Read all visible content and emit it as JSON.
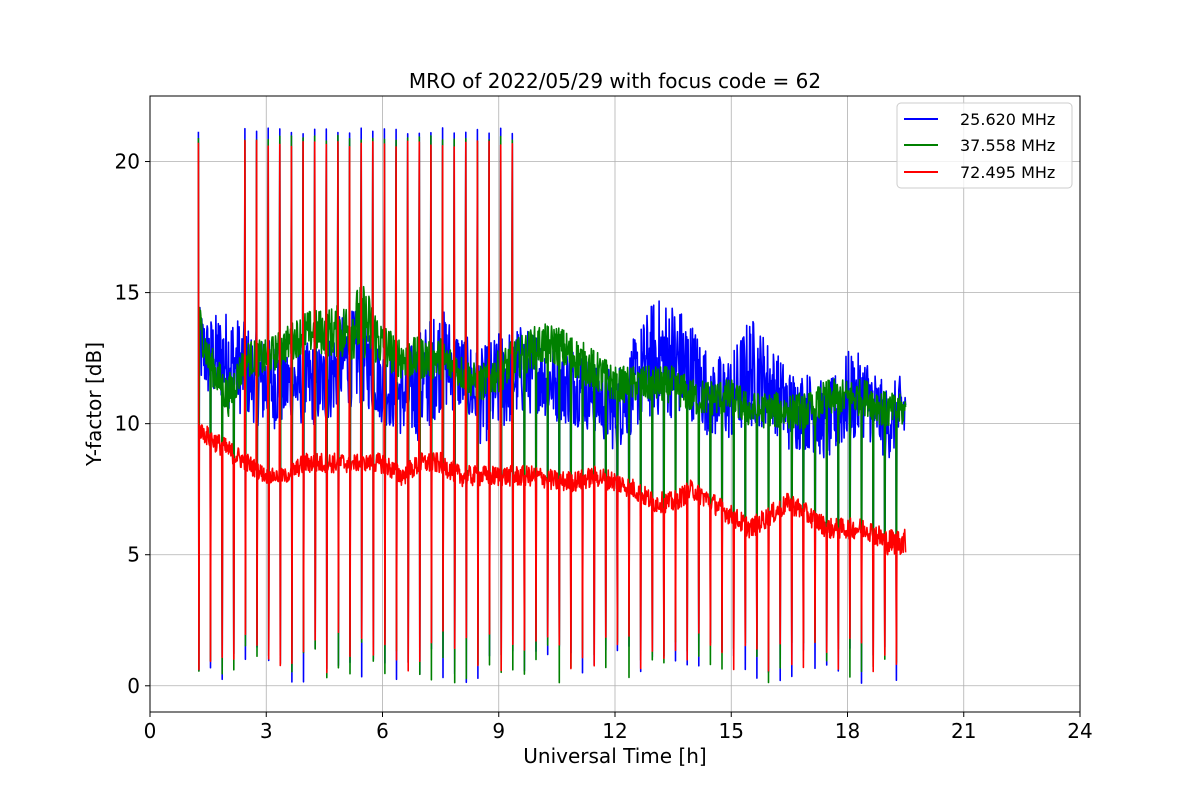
{
  "chart_data": {
    "type": "line",
    "title": "MRO of 2022/05/29 with focus code = 62",
    "xlabel": "Universal Time [h]",
    "ylabel": "Y-factor [dB]",
    "xlim": [
      0,
      24
    ],
    "ylim": [
      -1.0,
      22.5
    ],
    "xticks": [
      0,
      3,
      6,
      9,
      12,
      15,
      18,
      21,
      24
    ],
    "yticks": [
      0,
      5,
      10,
      15,
      20
    ],
    "grid": true,
    "legend_position": "top-right",
    "x_range_of_data": [
      1.25,
      19.5
    ],
    "calibration_cycle_hours": 0.3,
    "series": [
      {
        "name": "25.620 MHz",
        "color": "#0000ff",
        "calibration_levels": {
          "high": 21.3,
          "low": 0.1
        },
        "x": [
          1.25,
          1.5,
          2.0,
          2.5,
          3.0,
          3.5,
          4.0,
          4.5,
          5.0,
          5.5,
          6.0,
          6.5,
          7.0,
          7.5,
          8.0,
          8.5,
          9.0,
          9.5,
          10.0,
          10.5,
          11.0,
          11.5,
          12.0,
          12.5,
          13.0,
          13.5,
          14.0,
          14.5,
          15.0,
          15.5,
          16.0,
          16.5,
          17.0,
          17.5,
          18.0,
          18.5,
          19.0,
          19.5
        ],
        "y": [
          13.0,
          12.5,
          12.5,
          12.0,
          11.5,
          11.5,
          11.5,
          11.5,
          12.5,
          12.5,
          11.5,
          11.0,
          11.5,
          12.5,
          12.0,
          11.0,
          11.5,
          12.0,
          12.0,
          11.5,
          11.5,
          11.0,
          10.5,
          11.5,
          12.5,
          12.5,
          12.0,
          11.0,
          11.0,
          12.0,
          11.5,
          10.5,
          10.5,
          10.0,
          11.0,
          11.0,
          10.0,
          10.5
        ],
        "noise_amplitude": [
          1.5,
          1.6,
          1.9,
          1.8,
          1.8,
          1.6,
          1.6,
          1.6,
          1.9,
          1.8,
          1.5,
          1.5,
          2.2,
          2.0,
          1.6,
          1.8,
          2.0,
          1.8,
          1.6,
          1.5,
          1.6,
          1.4,
          1.6,
          1.8,
          2.3,
          2.3,
          1.9,
          1.6,
          1.7,
          2.2,
          1.6,
          1.6,
          1.5,
          1.5,
          1.8,
          1.6,
          1.4,
          1.5
        ]
      },
      {
        "name": "37.558 MHz",
        "color": "#008000",
        "calibration_levels": {
          "high": 21.0,
          "low": 0.1
        },
        "x": [
          1.25,
          1.5,
          2.0,
          2.5,
          3.0,
          3.5,
          4.0,
          4.5,
          5.0,
          5.5,
          6.0,
          6.5,
          7.0,
          7.5,
          8.0,
          8.5,
          9.0,
          9.5,
          10.0,
          10.5,
          11.0,
          11.5,
          12.0,
          12.5,
          13.0,
          13.5,
          14.0,
          14.5,
          15.0,
          15.5,
          16.0,
          16.5,
          17.0,
          17.5,
          18.0,
          18.5,
          19.0,
          19.5
        ],
        "y": [
          14.0,
          12.5,
          11.0,
          12.5,
          12.5,
          13.0,
          13.5,
          13.5,
          13.5,
          14.0,
          13.0,
          12.5,
          12.5,
          12.5,
          12.0,
          11.5,
          12.0,
          12.5,
          13.0,
          13.0,
          12.5,
          12.0,
          11.5,
          11.5,
          11.5,
          11.5,
          11.0,
          11.0,
          11.0,
          10.5,
          10.5,
          10.5,
          10.5,
          11.0,
          11.0,
          11.0,
          10.5,
          10.5
        ],
        "noise_amplitude": [
          0.8,
          0.7,
          0.8,
          0.7,
          0.7,
          0.7,
          0.8,
          0.9,
          1.1,
          1.5,
          0.9,
          0.8,
          0.8,
          0.8,
          0.7,
          0.7,
          0.8,
          0.8,
          0.8,
          0.8,
          0.8,
          0.8,
          0.7,
          0.7,
          0.7,
          0.7,
          0.7,
          0.7,
          0.7,
          0.7,
          0.7,
          0.7,
          0.7,
          0.7,
          0.7,
          0.7,
          0.7,
          0.6
        ]
      },
      {
        "name": "72.495 MHz",
        "color": "#ff0000",
        "calibration_levels": {
          "high": 20.8,
          "low": 0.5
        },
        "x": [
          1.25,
          1.5,
          2.0,
          2.5,
          3.0,
          3.5,
          4.0,
          4.5,
          5.0,
          5.5,
          6.0,
          6.5,
          7.0,
          7.5,
          8.0,
          8.5,
          9.0,
          9.5,
          10.0,
          10.5,
          11.0,
          11.5,
          12.0,
          12.5,
          13.0,
          13.5,
          14.0,
          14.5,
          15.0,
          15.5,
          16.0,
          16.5,
          17.0,
          17.5,
          18.0,
          18.5,
          19.0,
          19.5
        ],
        "y": [
          9.8,
          9.5,
          9.0,
          8.5,
          8.0,
          8.0,
          8.5,
          8.5,
          8.5,
          8.5,
          8.5,
          8.0,
          8.5,
          8.5,
          8.0,
          8.0,
          8.0,
          8.0,
          8.0,
          7.8,
          7.8,
          8.0,
          7.8,
          7.5,
          7.0,
          7.0,
          7.5,
          7.0,
          6.5,
          6.0,
          6.5,
          7.0,
          6.5,
          6.0,
          6.0,
          6.0,
          5.5,
          5.5
        ],
        "noise_amplitude": [
          0.3,
          0.4,
          0.4,
          0.4,
          0.3,
          0.3,
          0.4,
          0.4,
          0.4,
          0.3,
          0.4,
          0.4,
          0.4,
          0.4,
          0.4,
          0.4,
          0.4,
          0.4,
          0.4,
          0.4,
          0.4,
          0.4,
          0.4,
          0.4,
          0.4,
          0.4,
          0.4,
          0.4,
          0.4,
          0.4,
          0.4,
          0.4,
          0.4,
          0.4,
          0.4,
          0.4,
          0.5,
          0.5
        ]
      }
    ]
  }
}
